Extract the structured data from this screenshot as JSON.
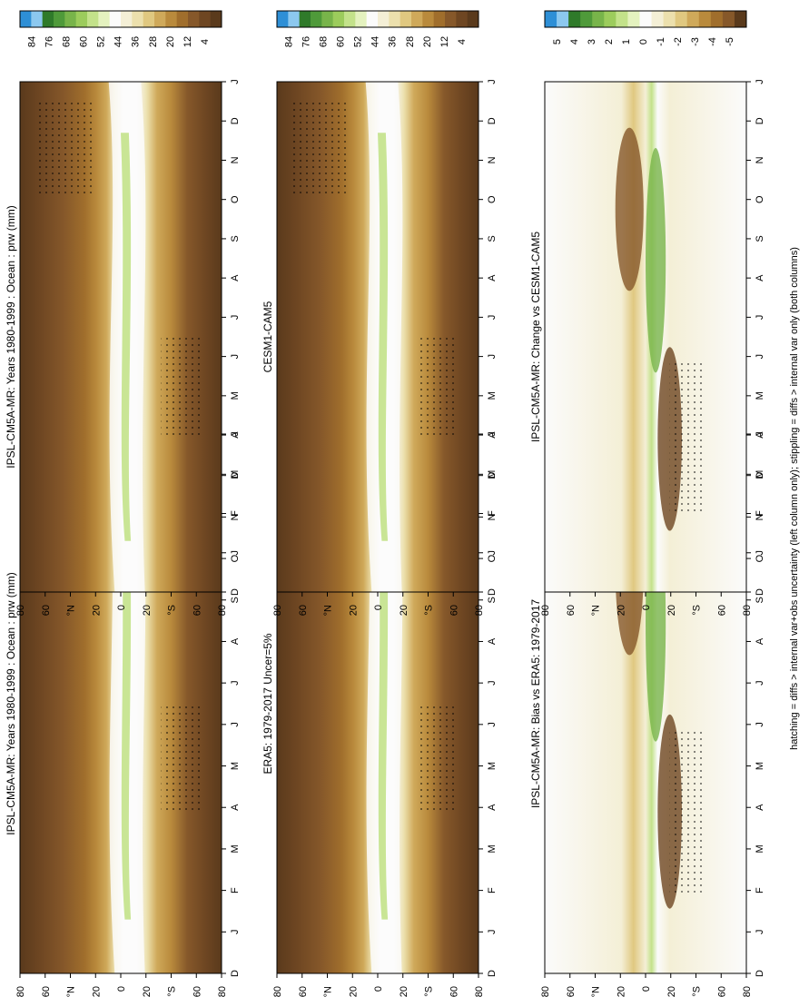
{
  "figure": {
    "footer": "hatching = diffs > internal var+obs uncertainty (left column only); stippling = diffs > internal var only (both columns)"
  },
  "colors": {
    "abs_scale": [
      "#2e8fd6",
      "#8cc8ef",
      "#2f7a2a",
      "#4f9a3a",
      "#78b44a",
      "#9ccc5c",
      "#c3e28a",
      "#e4f2bf",
      "#fbfbfb",
      "#f4efd6",
      "#ece0ad",
      "#e0c880",
      "#cfa95a",
      "#b98a3c",
      "#a06e2c",
      "#86582a",
      "#6e4622",
      "#5a3a1c"
    ],
    "diff_scale": [
      "#2e8fd6",
      "#8cc8ef",
      "#2f7a2a",
      "#4f9a3a",
      "#78b44a",
      "#9ccc5c",
      "#c3e28a",
      "#e4f2bf",
      "#fbfbfb",
      "#f4efd6",
      "#ece0ad",
      "#e0c880",
      "#cfa95a",
      "#b98a3c",
      "#a06e2c",
      "#86582a",
      "#5a3a1c"
    ]
  },
  "axes": {
    "months": [
      "D",
      "J",
      "F",
      "M",
      "A",
      "M",
      "J",
      "J",
      "A",
      "S",
      "O",
      "N",
      "D",
      "J"
    ],
    "lat_labels": [
      "80",
      "60",
      "°N",
      "20",
      "0",
      "20",
      "°S",
      "60",
      "80"
    ]
  },
  "colorbars": {
    "abs_labels": [
      "84",
      "76",
      "68",
      "60",
      "52",
      "44",
      "36",
      "28",
      "20",
      "12",
      "4"
    ],
    "diff_labels": [
      "5",
      "4",
      "3",
      "2",
      "1",
      "0",
      "-1",
      "-2",
      "-3",
      "-4",
      "-5"
    ]
  },
  "panels": [
    {
      "id": "top-left",
      "title": "IPSL-CM5A-MR: Years 1980-1999 : Ocean : prw (mm)",
      "kind": "abs"
    },
    {
      "id": "mid-left",
      "title": "ERA5: 1979-2017 Uncer=5%",
      "kind": "abs"
    },
    {
      "id": "bot-left",
      "title": "IPSL-CM5A-MR: Bias vs ERA5: 1979-2017",
      "kind": "diff"
    },
    {
      "id": "top-right",
      "title": "IPSL-CM5A-MR: Years 1980-1999 : Ocean : prw (mm)",
      "kind": "abs"
    },
    {
      "id": "mid-right",
      "title": "CESM1-CAM5",
      "kind": "abs"
    },
    {
      "id": "bot-right",
      "title": "IPSL-CM5A-MR: Change vs CESM1-CAM5",
      "kind": "diff"
    }
  ],
  "chart_data": [
    {
      "type": "heatmap",
      "title": "IPSL-CM5A-MR: Years 1980-1999 : Ocean : prw (mm)",
      "x": [
        "D",
        "J",
        "F",
        "M",
        "A",
        "M",
        "J",
        "J",
        "A",
        "S",
        "O",
        "N",
        "D",
        "J"
      ],
      "y": [
        "80",
        "60",
        "°N",
        "20",
        "0",
        "20",
        "°S",
        "60",
        "80"
      ],
      "colorbar": [
        "84",
        "76",
        "68",
        "60",
        "52",
        "44",
        "36",
        "28",
        "20",
        "12",
        "4"
      ]
    },
    {
      "type": "heatmap",
      "title": "ERA5: 1979-2017 Uncer=5%",
      "x": [
        "D",
        "J",
        "F",
        "M",
        "A",
        "M",
        "J",
        "J",
        "A",
        "S",
        "O",
        "N",
        "D",
        "J"
      ],
      "y": [
        "80",
        "60",
        "°N",
        "20",
        "0",
        "20",
        "°S",
        "60",
        "80"
      ],
      "colorbar": [
        "84",
        "76",
        "68",
        "60",
        "52",
        "44",
        "36",
        "28",
        "20",
        "12",
        "4"
      ]
    },
    {
      "type": "heatmap",
      "title": "IPSL-CM5A-MR: Bias vs ERA5: 1979-2017",
      "x": [
        "D",
        "J",
        "F",
        "M",
        "A",
        "M",
        "J",
        "J",
        "A",
        "S",
        "O",
        "N",
        "D",
        "J"
      ],
      "y": [
        "80",
        "60",
        "°N",
        "20",
        "0",
        "20",
        "°S",
        "60",
        "80"
      ],
      "colorbar": [
        "5",
        "4",
        "3",
        "2",
        "1",
        "0",
        "-1",
        "-2",
        "-3",
        "-4",
        "-5"
      ]
    },
    {
      "type": "heatmap",
      "title": "IPSL-CM5A-MR: Years 1980-1999 : Ocean : prw (mm)",
      "x": [
        "D",
        "J",
        "F",
        "M",
        "A",
        "M",
        "J",
        "J",
        "A",
        "S",
        "O",
        "N",
        "D",
        "J"
      ],
      "y": [
        "80",
        "60",
        "°N",
        "20",
        "0",
        "20",
        "°S",
        "60",
        "80"
      ],
      "colorbar": [
        "84",
        "76",
        "68",
        "60",
        "52",
        "44",
        "36",
        "28",
        "20",
        "12",
        "4"
      ]
    },
    {
      "type": "heatmap",
      "title": "CESM1-CAM5",
      "x": [
        "D",
        "J",
        "F",
        "M",
        "A",
        "M",
        "J",
        "J",
        "A",
        "S",
        "O",
        "N",
        "D",
        "J"
      ],
      "y": [
        "80",
        "60",
        "°N",
        "20",
        "0",
        "20",
        "°S",
        "60",
        "80"
      ],
      "colorbar": [
        "84",
        "76",
        "68",
        "60",
        "52",
        "44",
        "36",
        "28",
        "20",
        "12",
        "4"
      ]
    },
    {
      "type": "heatmap",
      "title": "IPSL-CM5A-MR: Change vs CESM1-CAM5",
      "x": [
        "D",
        "J",
        "F",
        "M",
        "A",
        "M",
        "J",
        "J",
        "A",
        "S",
        "O",
        "N",
        "D",
        "J"
      ],
      "y": [
        "80",
        "60",
        "°N",
        "20",
        "0",
        "20",
        "°S",
        "60",
        "80"
      ],
      "colorbar": [
        "5",
        "4",
        "3",
        "2",
        "1",
        "0",
        "-1",
        "-2",
        "-3",
        "-4",
        "-5"
      ]
    }
  ]
}
